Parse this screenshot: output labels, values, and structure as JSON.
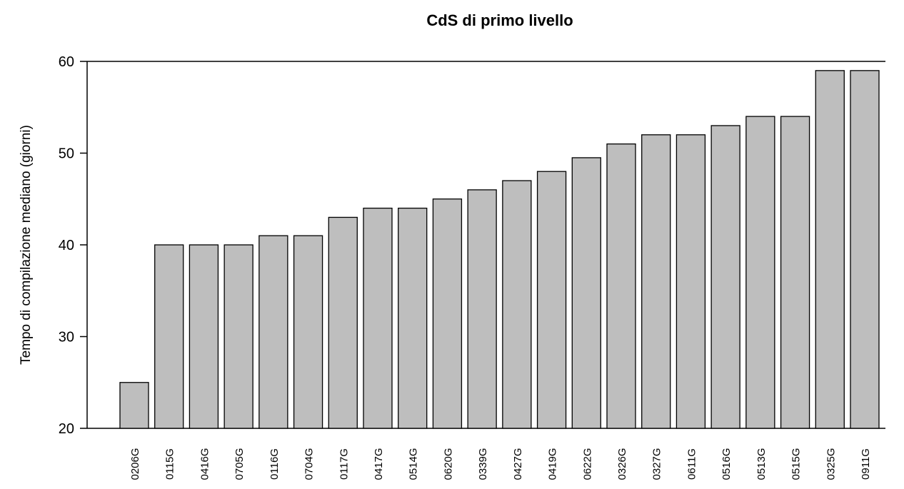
{
  "chart_data": {
    "type": "bar",
    "title": "CdS di primo livello",
    "y_label": "Tempo di compilazione mediano (giorni)",
    "categories": [
      "0206G",
      "0115G",
      "0416G",
      "0705G",
      "0116G",
      "0704G",
      "0117G",
      "0417G",
      "0514G",
      "0620G",
      "0339G",
      "0427G",
      "0419G",
      "0622G",
      "0326G",
      "0327G",
      "0611G",
      "0516G",
      "0513G",
      "0515G",
      "0325G",
      "0911G"
    ],
    "values": [
      25,
      40,
      40,
      40,
      41,
      41,
      43,
      44,
      44,
      45,
      46,
      47,
      48,
      49.5,
      51,
      52,
      52,
      53,
      54,
      54,
      59,
      59
    ],
    "color": "#bebebe",
    "ylim": [
      20,
      60
    ],
    "yticks": [
      20,
      30,
      40,
      50,
      60
    ]
  }
}
